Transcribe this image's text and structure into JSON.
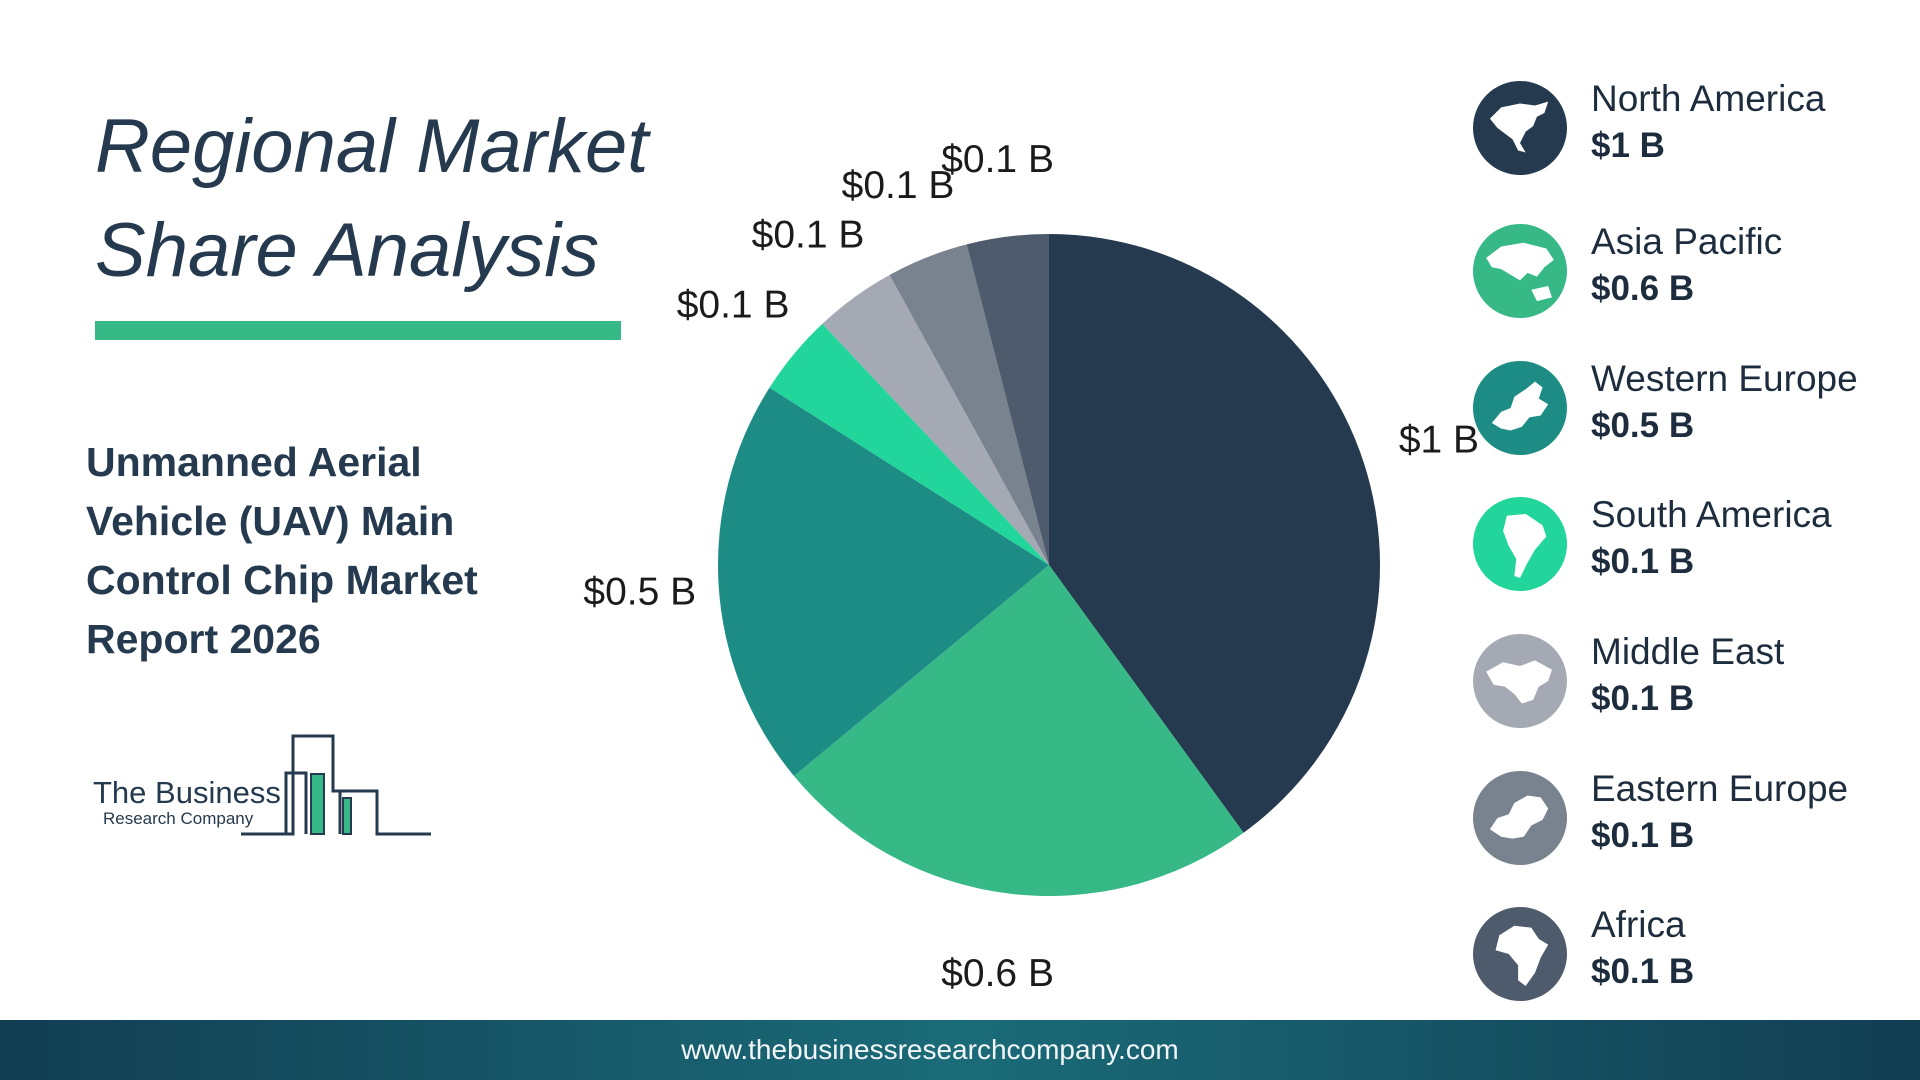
{
  "title": {
    "line1": "Regional Market",
    "line2": "Share Analysis"
  },
  "subtitle": {
    "lines": [
      "Unmanned Aerial",
      "Vehicle (UAV) Main",
      "Control Chip Market",
      "Report 2026"
    ]
  },
  "logo": {
    "line1": "The Business",
    "line2": "Research Company"
  },
  "chart_data": {
    "type": "pie",
    "unit": "B",
    "categories": [
      "North America",
      "Asia Pacific",
      "Western Europe",
      "South America",
      "Middle East",
      "Eastern Europe",
      "Africa"
    ],
    "values": [
      1,
      0.6,
      0.5,
      0.1,
      0.1,
      0.1,
      0.1
    ],
    "labels": [
      "$1 B",
      "$0.6 B",
      "$0.5 B",
      "$0.1 B",
      "$0.1 B",
      "$0.1 B",
      "$0.1 B"
    ],
    "colors": [
      "#25394f",
      "#36b887",
      "#1c8c85",
      "#22d69b",
      "#a4a9b4",
      "#78838f",
      "#4d5b6c"
    ]
  },
  "legend": [
    {
      "name": "North America",
      "value": "$1 B",
      "color": "#25394f",
      "icon": "north-america-map-icon"
    },
    {
      "name": "Asia Pacific",
      "value": "$0.6 B",
      "color": "#36b887",
      "icon": "asia-pacific-map-icon"
    },
    {
      "name": "Western Europe",
      "value": "$0.5 B",
      "color": "#1c8c85",
      "icon": "western-europe-map-icon"
    },
    {
      "name": "South America",
      "value": "$0.1 B",
      "color": "#22d69b",
      "icon": "south-america-map-icon"
    },
    {
      "name": "Middle East",
      "value": "$0.1 B",
      "color": "#a4a9b4",
      "icon": "middle-east-map-icon"
    },
    {
      "name": "Eastern Europe",
      "value": "$0.1 B",
      "color": "#78838f",
      "icon": "eastern-europe-map-icon"
    },
    {
      "name": "Africa",
      "value": "$0.1 B",
      "color": "#4d5b6c",
      "icon": "africa-map-icon"
    }
  ],
  "footer": {
    "url": "www.thebusinessresearchcompany.com"
  }
}
